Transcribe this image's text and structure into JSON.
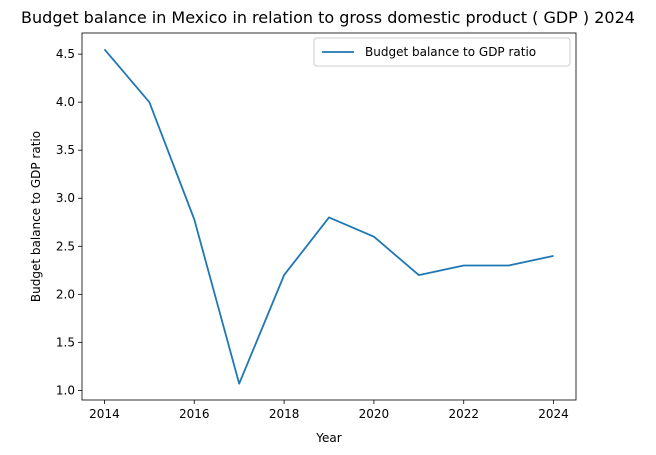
{
  "chart_data": {
    "type": "line",
    "title": "Budget balance in Mexico in relation to gross domestic product ( GDP ) 2024",
    "xlabel": "Year",
    "ylabel": "Budget balance to GDP ratio",
    "x": [
      2014,
      2015,
      2016,
      2017,
      2018,
      2019,
      2020,
      2021,
      2022,
      2023,
      2024
    ],
    "series": [
      {
        "name": "Budget balance to GDP ratio",
        "values": [
          4.55,
          4.0,
          2.78,
          1.07,
          2.2,
          2.8,
          2.6,
          2.2,
          2.3,
          2.3,
          2.4
        ],
        "color": "#1f77b4"
      }
    ],
    "xlim": [
      2013.5,
      2024.5
    ],
    "ylim": [
      0.9,
      4.72
    ],
    "xticks": [
      2014,
      2016,
      2018,
      2020,
      2022,
      2024
    ],
    "yticks": [
      1.0,
      1.5,
      2.0,
      2.5,
      3.0,
      3.5,
      4.0,
      4.5
    ],
    "ytick_labels": [
      "1.0",
      "1.5",
      "2.0",
      "2.5",
      "3.0",
      "3.5",
      "4.0",
      "4.5"
    ],
    "grid": false,
    "legend": "top-right"
  }
}
